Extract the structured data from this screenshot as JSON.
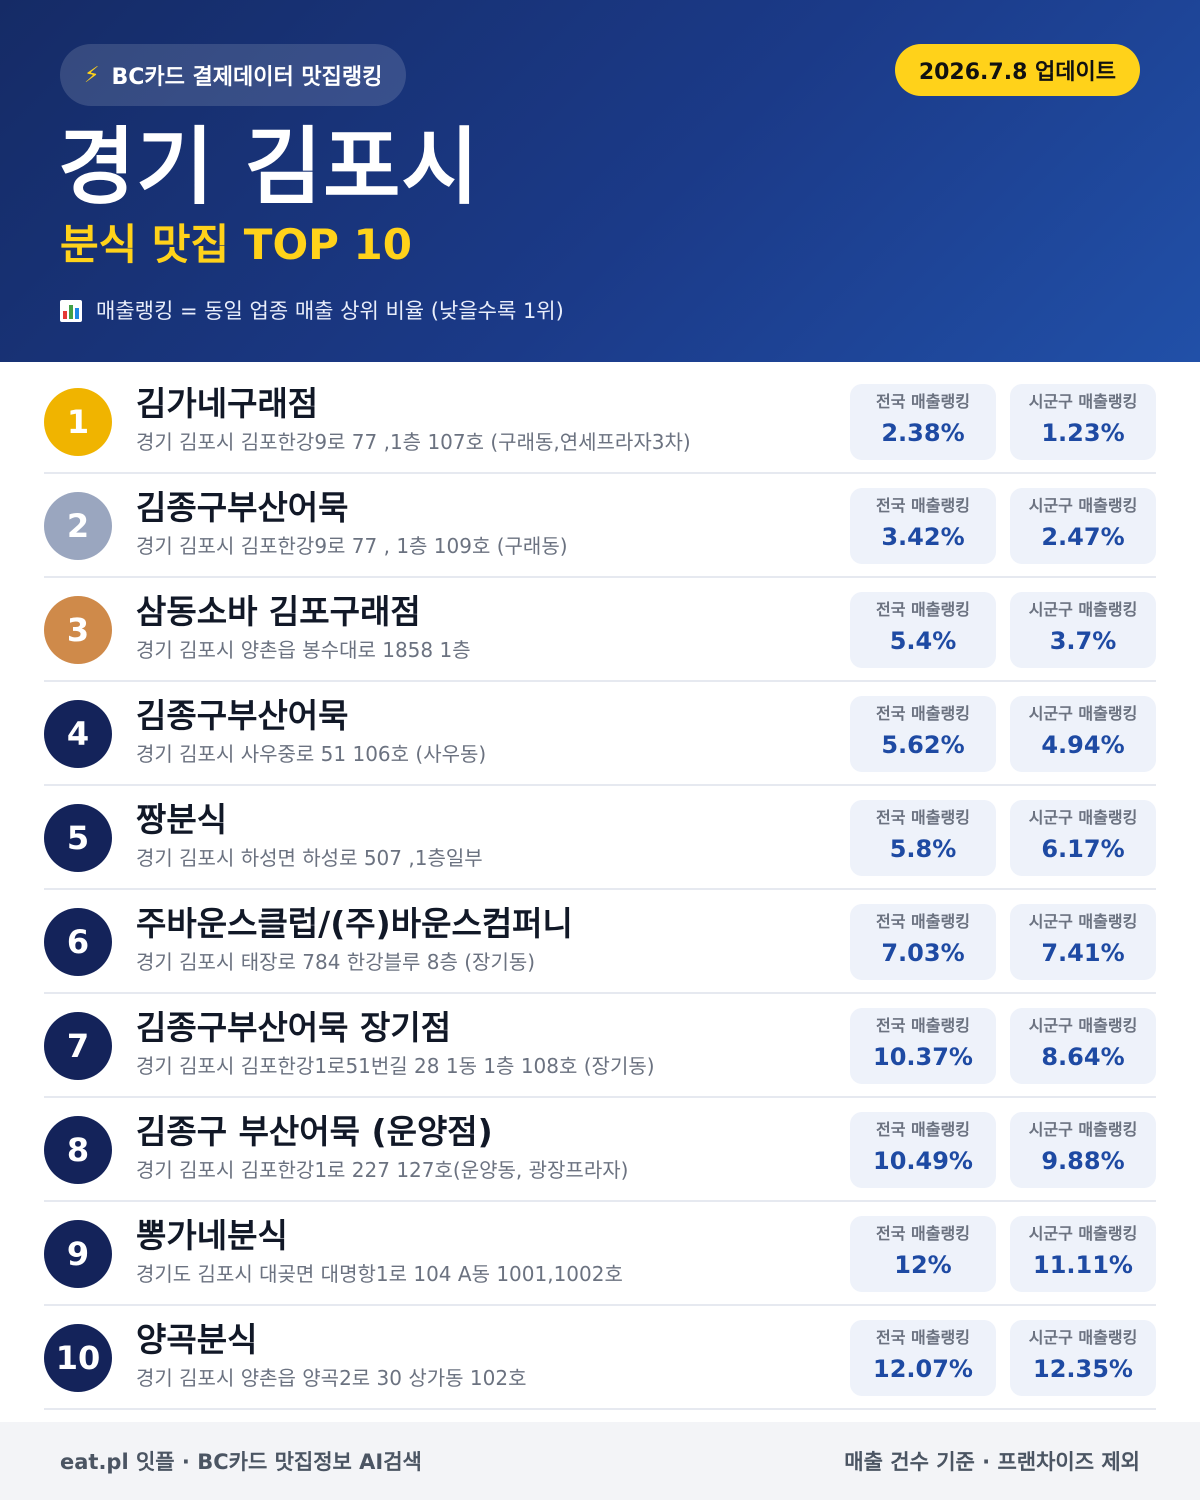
{
  "header": {
    "brand": "BC카드 결제데이터 맛집랭킹",
    "update": "2026.7.8 업데이트",
    "region": "경기 김포시",
    "category": "분식 맛집 TOP 10",
    "note": "매출랭킹 = 동일 업종 매출 상위 비율 (낮을수록 1위)"
  },
  "labels": {
    "national": "전국 매출랭킹",
    "local": "시군구 매출랭킹"
  },
  "colors": {
    "gold": "#f0b400",
    "silver": "#9aa6bf",
    "bronze": "#cf8a4a",
    "navy": "#14235a",
    "accent": "#ffd21a",
    "value": "#1e4aa3"
  },
  "restaurants": [
    {
      "rank": "1",
      "name": "김가네구래점",
      "address": "경기 김포시 김포한강9로 77 ,1층 107호 (구래동,연세프라자3차)",
      "national": "2.38%",
      "local": "1.23%"
    },
    {
      "rank": "2",
      "name": "김종구부산어묵",
      "address": "경기 김포시 김포한강9로 77 , 1층 109호 (구래동)",
      "national": "3.42%",
      "local": "2.47%"
    },
    {
      "rank": "3",
      "name": "삼동소바 김포구래점",
      "address": "경기 김포시 양촌읍 봉수대로 1858 1층",
      "national": "5.4%",
      "local": "3.7%"
    },
    {
      "rank": "4",
      "name": "김종구부산어묵",
      "address": "경기 김포시 사우중로 51 106호 (사우동)",
      "national": "5.62%",
      "local": "4.94%"
    },
    {
      "rank": "5",
      "name": "짱분식",
      "address": "경기 김포시 하성면 하성로 507 ,1층일부",
      "national": "5.8%",
      "local": "6.17%"
    },
    {
      "rank": "6",
      "name": "주바운스클럽/(주)바운스컴퍼니",
      "address": "경기 김포시 태장로 784 한강블루 8층 (장기동)",
      "national": "7.03%",
      "local": "7.41%"
    },
    {
      "rank": "7",
      "name": "김종구부산어묵 장기점",
      "address": "경기 김포시 김포한강1로51번길 28 1동 1층 108호 (장기동)",
      "national": "10.37%",
      "local": "8.64%"
    },
    {
      "rank": "8",
      "name": "김종구 부산어묵 (운양점)",
      "address": "경기 김포시 김포한강1로 227 127호(운양동, 광장프라자)",
      "national": "10.49%",
      "local": "9.88%"
    },
    {
      "rank": "9",
      "name": "뽕가네분식",
      "address": "경기도 김포시 대곶면 대명항1로 104 A동 1001,1002호",
      "national": "12%",
      "local": "11.11%"
    },
    {
      "rank": "10",
      "name": "양곡분식",
      "address": "경기 김포시 양촌읍 양곡2로 30 상가동 102호",
      "national": "12.07%",
      "local": "12.35%"
    }
  ],
  "footer": {
    "left": "eat.pl 잇플 · BC카드 맛집정보 AI검색",
    "right": "매출 건수 기준 · 프랜차이즈 제외"
  }
}
